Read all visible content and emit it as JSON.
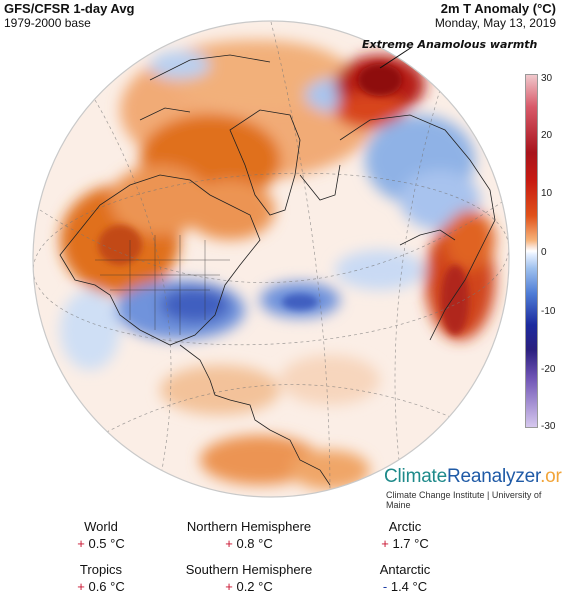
{
  "header": {
    "title": "GFS/CFSR 1-day Avg",
    "subtitle": "1979-2000 base",
    "variable": "2m T Anomaly (°C)",
    "date": "Monday, May 13, 2019"
  },
  "annotation": "Extreme Anamolous warmth",
  "colorbar": {
    "ticks": [
      "30",
      "20",
      "10",
      "0",
      "-10",
      "-20",
      "-30"
    ],
    "colors": {
      "hot": "#a8141c",
      "warm": "#e0521a",
      "neutral": "#ffffff",
      "cool": "#4f7dd6",
      "cold": "#1c2a9e",
      "extreme_cold": "#d6c8ee"
    }
  },
  "brand": {
    "part1": "Climate",
    "part2": "Reanalyzer",
    "part3": ".org",
    "credit": "Climate Change Institute | University of Maine"
  },
  "stats": [
    {
      "label": "World",
      "sign": "+",
      "value": "0.5 °C"
    },
    {
      "label": "Northern Hemisphere",
      "sign": "+",
      "value": "0.8 °C"
    },
    {
      "label": "Arctic",
      "sign": "+",
      "value": "1.7 °C"
    },
    {
      "label": "Tropics",
      "sign": "+",
      "value": "0.6 °C"
    },
    {
      "label": "Southern Hemisphere",
      "sign": "+",
      "value": "0.2 °C"
    },
    {
      "label": "Antarctic",
      "sign": "-",
      "value": "1.4 °C"
    }
  ]
}
